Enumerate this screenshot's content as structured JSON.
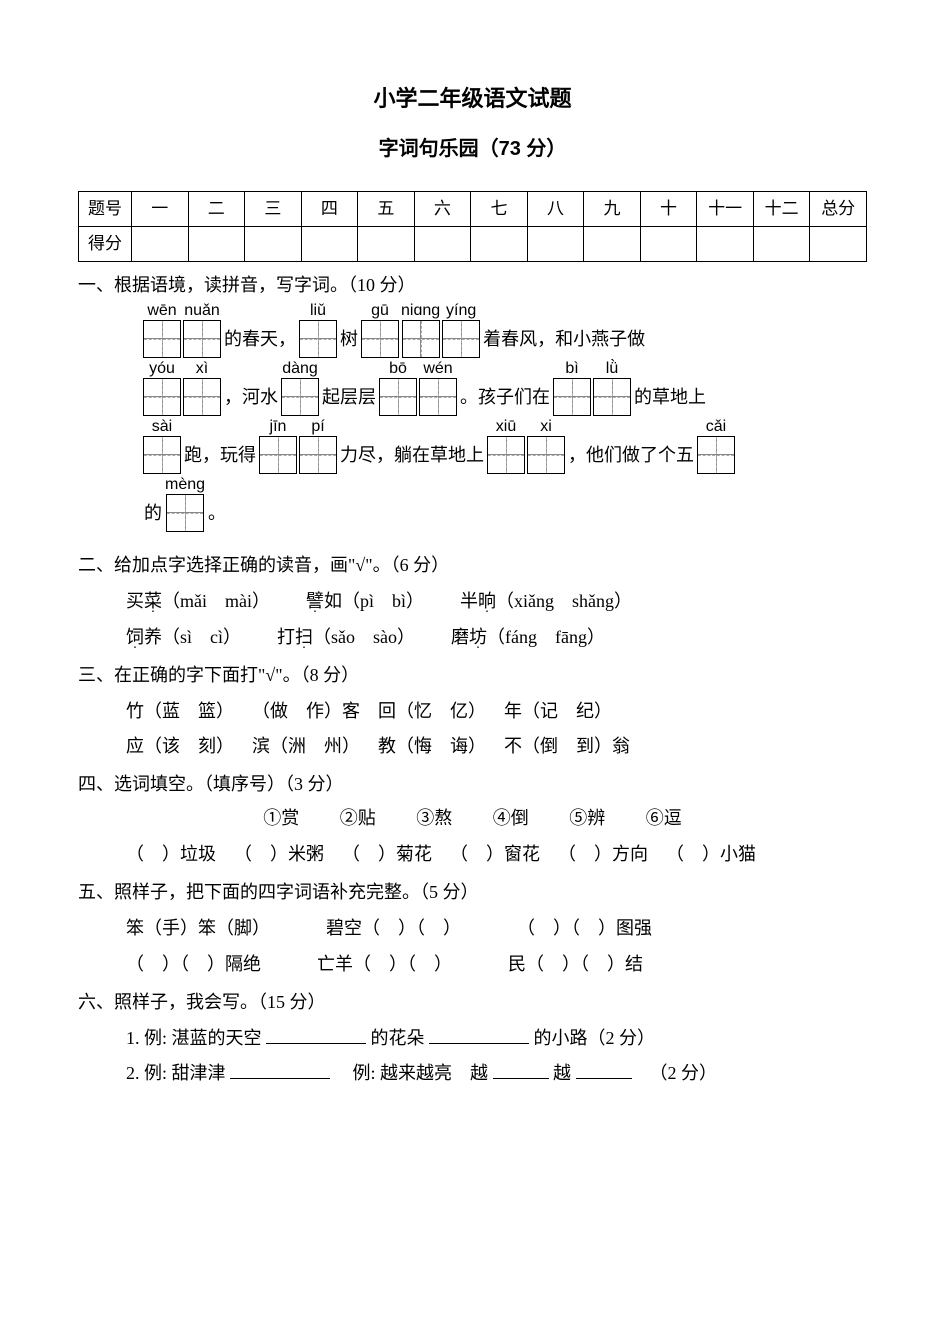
{
  "title": "小学二年级语文试题",
  "subtitle": "字词句乐园（73 分）",
  "score_table": {
    "row1_label": "题号",
    "row2_label": "得分",
    "cols": [
      "一",
      "二",
      "三",
      "四",
      "五",
      "六",
      "七",
      "八",
      "九",
      "十",
      "十一",
      "十二",
      "总分"
    ]
  },
  "q1": {
    "heading": "一、根据语境，读拼音，写字词。（10 分）",
    "lines": [
      {
        "parts": [
          {
            "type": "cell",
            "pinyin": "wēn",
            "boxes": 1
          },
          {
            "type": "cell",
            "pinyin": "nuǎn",
            "boxes": 1
          },
          {
            "type": "text",
            "text": "的春天，"
          },
          {
            "type": "cell",
            "pinyin": "liǔ",
            "boxes": 1
          },
          {
            "type": "text",
            "text": "树"
          },
          {
            "type": "cell",
            "pinyin": "gū",
            "boxes": 1
          },
          {
            "type": "cell",
            "pinyin": "niɑng",
            "boxes": 1
          },
          {
            "type": "cell",
            "pinyin": "yíng",
            "boxes": 1
          },
          {
            "type": "text",
            "text": "着春风，和小燕子做"
          }
        ]
      },
      {
        "parts": [
          {
            "type": "cell",
            "pinyin": "yóu",
            "boxes": 1
          },
          {
            "type": "cell",
            "pinyin": "xì",
            "boxes": 1
          },
          {
            "type": "text",
            "text": "，河水"
          },
          {
            "type": "cell",
            "pinyin": "dàng",
            "boxes": 1
          },
          {
            "type": "text",
            "text": "起层层"
          },
          {
            "type": "cell",
            "pinyin": "bō",
            "boxes": 1
          },
          {
            "type": "cell",
            "pinyin": "wén",
            "boxes": 1
          },
          {
            "type": "text",
            "text": "。孩子们在"
          },
          {
            "type": "cell",
            "pinyin": "bì",
            "boxes": 1
          },
          {
            "type": "cell",
            "pinyin": "lǜ",
            "boxes": 1
          },
          {
            "type": "text",
            "text": "的草地上"
          }
        ]
      },
      {
        "parts": [
          {
            "type": "cell",
            "pinyin": "sài",
            "boxes": 1
          },
          {
            "type": "text",
            "text": "跑，玩得"
          },
          {
            "type": "cell",
            "pinyin": "jīn",
            "boxes": 1
          },
          {
            "type": "cell",
            "pinyin": "pí",
            "boxes": 1
          },
          {
            "type": "text",
            "text": "力尽，躺在草地上"
          },
          {
            "type": "cell",
            "pinyin": "xiū",
            "boxes": 1
          },
          {
            "type": "cell",
            "pinyin": "xi",
            "boxes": 1
          },
          {
            "type": "text",
            "text": "，他们做了个五"
          },
          {
            "type": "cell",
            "pinyin": "cǎi",
            "boxes": 1
          }
        ]
      },
      {
        "parts": [
          {
            "type": "text",
            "text": "的"
          },
          {
            "type": "cell",
            "pinyin": "mèng",
            "boxes": 1
          },
          {
            "type": "text",
            "text": "。"
          }
        ]
      }
    ]
  },
  "q2": {
    "heading": "二、给加点字选择正确的读音，画\"√\"。（6 分）",
    "items": [
      {
        "pre": "买",
        "dot": "菜",
        "opts": "（mǎi　mài）"
      },
      {
        "pre": "",
        "dot": "譬",
        "suf": "如",
        "opts": "（pì　bì）"
      },
      {
        "pre": "半",
        "dot": "晌",
        "opts": "（xiǎng　shǎng）"
      },
      {
        "pre": "",
        "dot": "饲",
        "suf": "养",
        "opts": "（sì　cì）"
      },
      {
        "pre": "打",
        "dot": "扫",
        "opts": "（sǎo　sào）"
      },
      {
        "pre": "磨",
        "dot": "坊",
        "opts": "（fáng　fāng）"
      }
    ]
  },
  "q3": {
    "heading": "三、在正确的字下面打\"√\"。（8 分）",
    "row1": [
      "竹（蓝　篮）",
      "（做　作）客",
      "回（忆　亿）",
      "年（记　纪）"
    ],
    "row2": [
      "应（该　刻）",
      "滨（洲　州）",
      "教（悔　诲）",
      "不（倒　到）翁"
    ]
  },
  "q4": {
    "heading": "四、选词填空。（填序号）（3 分）",
    "options": [
      "①赏",
      "②贴",
      "③熬",
      "④倒",
      "⑤辨",
      "⑥逗"
    ],
    "blanks": [
      "（　）垃圾",
      "（　）米粥",
      "（　）菊花",
      "（　）窗花",
      "（　）方向",
      "（　）小猫"
    ]
  },
  "q5": {
    "heading": "五、照样子，把下面的四字词语补充完整。（5 分）",
    "row1": [
      "笨（手）笨（脚）",
      "碧空（　）（　）",
      "（　）（　）图强"
    ],
    "row2": [
      "（　）（　）隔绝",
      "亡羊（　）（　）",
      "民（　）（　）结"
    ]
  },
  "q6": {
    "heading": "六、照样子，我会写。（15 分）",
    "item1_prefix": "1. 例: 湛蓝的天空",
    "item1_mid": "的花朵",
    "item1_suffix": "的小路（2 分）",
    "item2_a": "2. 例: 甜津津",
    "item2_b": "例: 越来越亮　越",
    "item2_c": "越",
    "item2_pts": "（2 分）"
  }
}
